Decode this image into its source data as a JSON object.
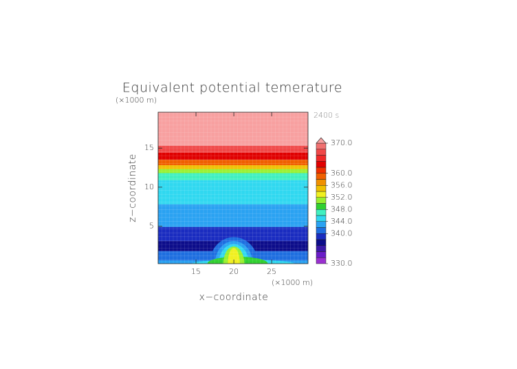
{
  "chart_data": {
    "type": "contour",
    "title": "Equivalent potential temerature",
    "time_label": "2400 s",
    "x_label": "x−coordinate",
    "y_label": "z−coordinate",
    "x_unit": "(×1000 m)",
    "y_unit": "(×1000 m)",
    "xlim": [
      10,
      29.8
    ],
    "ylim": [
      0.2,
      19.6
    ],
    "xticks": [
      15,
      20,
      25
    ],
    "yticks": [
      5,
      10,
      15
    ],
    "colorbar": {
      "levels": [
        330,
        332,
        334,
        336,
        338,
        340,
        342,
        344,
        346,
        348,
        350,
        352,
        354,
        356,
        358,
        360,
        362,
        364,
        366,
        368,
        370
      ],
      "colors": [
        "#9a30d0",
        "#6a1cc8",
        "#3a18a8",
        "#0c0c8a",
        "#1a2cc0",
        "#1e6ee0",
        "#2aa2f2",
        "#30d8f0",
        "#40f0c0",
        "#30d030",
        "#98f030",
        "#f0f020",
        "#f0c000",
        "#f09000",
        "#f06000",
        "#f03000",
        "#e00000",
        "#f02828",
        "#f04848",
        "#f07070"
      ],
      "over_color": "#f8a0a0",
      "ticks": [
        {
          "value": 330,
          "label": "330.0"
        },
        {
          "value": 340,
          "label": "340.0"
        },
        {
          "value": 344,
          "label": "344.0"
        },
        {
          "value": 348,
          "label": "348.0"
        },
        {
          "value": 352,
          "label": "352.0"
        },
        {
          "value": 356,
          "label": "356.0"
        },
        {
          "value": 360,
          "label": "360.0"
        },
        {
          "value": 370,
          "label": "370.0"
        }
      ]
    },
    "layers": [
      {
        "z": [
          15.3,
          19.6
        ],
        "value": 372
      },
      {
        "z": [
          14.4,
          15.3
        ],
        "value": 366
      },
      {
        "z": [
          13.5,
          14.4
        ],
        "value": 362
      },
      {
        "z": [
          12.8,
          13.5
        ],
        "value": 358
      },
      {
        "z": [
          12.3,
          12.8
        ],
        "value": 354
      },
      {
        "z": [
          11.8,
          12.3
        ],
        "value": 350
      },
      {
        "z": [
          10.9,
          11.8
        ],
        "value": 346
      },
      {
        "z": [
          7.8,
          10.9
        ],
        "value": 344
      },
      {
        "z": [
          4.9,
          7.8
        ],
        "value": 342
      },
      {
        "z": [
          3.1,
          4.9
        ],
        "value": 338
      },
      {
        "z": [
          1.8,
          3.1
        ],
        "value": 336
      },
      {
        "z": [
          0.6,
          1.8
        ],
        "value": 340
      },
      {
        "z": [
          0.2,
          0.6
        ],
        "value": 342
      }
    ],
    "domes": [
      {
        "x": [
          14.5,
          28
        ],
        "z": [
          0.2,
          0.7
        ],
        "value": 344
      },
      {
        "x": [
          16.8,
          23.2
        ],
        "z": [
          0.2,
          3.6
        ],
        "value": 340
      },
      {
        "x": [
          17.5,
          22.5
        ],
        "z": [
          0.2,
          3.1
        ],
        "value": 342
      },
      {
        "x": [
          18,
          22
        ],
        "z": [
          0.2,
          2.7
        ],
        "value": 344
      },
      {
        "x": [
          16.5,
          24.5
        ],
        "z": [
          0.2,
          1.1
        ],
        "value": 348
      },
      {
        "x": [
          18.6,
          21.4
        ],
        "z": [
          0.2,
          2.4
        ],
        "value": 350
      },
      {
        "x": [
          19.2,
          20.8
        ],
        "z": [
          0.2,
          2.2
        ],
        "value": 352
      }
    ]
  }
}
